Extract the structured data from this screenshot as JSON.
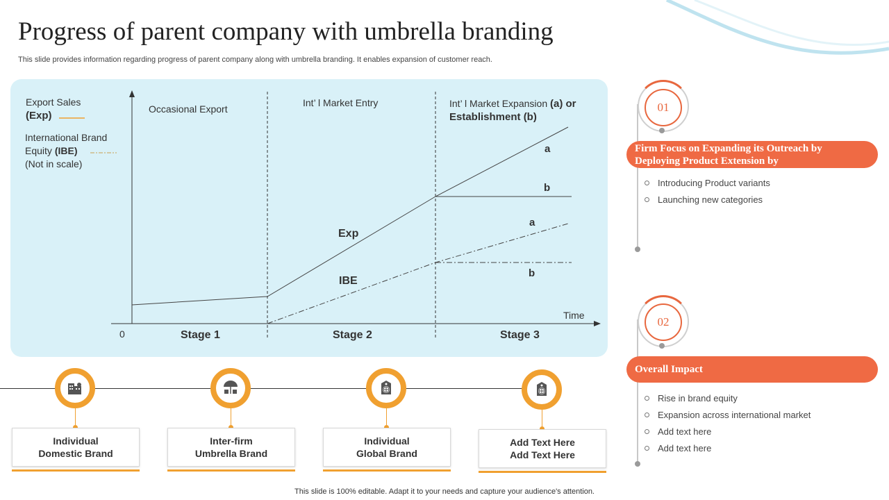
{
  "title": "Progress of parent company with umbrella branding",
  "subtitle": "This slide provides information regarding progress of parent company along with umbrella branding. It enables expansion of customer reach.",
  "colors": {
    "panel_bg": "#d9f1f8",
    "accent_orange": "#f0a030",
    "accent_red": "#ef6a44"
  },
  "diagram": {
    "legend": {
      "exp_label": "Export Sales",
      "exp_abbr": "(Exp)",
      "ibe_label_1": "International Brand",
      "ibe_label_2": "Equity",
      "ibe_abbr": "(IBE)",
      "ibe_note": "(Not in scale)"
    },
    "phases": {
      "occasional": "Occasional Export",
      "entry": "Int’ l Market Entry",
      "expansion_a": "Int’ l Market Expansion ",
      "expansion_a_bold": "(a) or",
      "expansion_b": "Establishment (b)"
    },
    "origin": "0",
    "time_label": "Time",
    "stages": [
      "Stage 1",
      "Stage 2",
      "Stage 3"
    ],
    "curve_labels": {
      "exp": "Exp",
      "ibe": "IBE",
      "exp_a": "a",
      "exp_b": "b",
      "ibe_a": "a",
      "ibe_b": "b"
    }
  },
  "timeline": [
    {
      "icon": "buildings-icon",
      "line1": "Individual",
      "line2": "Domestic Brand"
    },
    {
      "icon": "umbrella-icon",
      "line1": "Inter-firm",
      "line2": "Umbrella Brand"
    },
    {
      "icon": "global-tag-icon",
      "line1": "Individual",
      "line2": "Global Brand"
    },
    {
      "icon": "global-tag-icon",
      "line1": "Add  Text Here",
      "line2": "Add  Text Here"
    }
  ],
  "sections": [
    {
      "number": "01",
      "heading": "Firm Focus on Expanding its Outreach by Deploying Product Extension by",
      "bullets": [
        "Introducing Product variants",
        "Launching new categories"
      ]
    },
    {
      "number": "02",
      "heading": "Overall Impact",
      "bullets": [
        "Rise in brand equity",
        "Expansion across international market",
        "Add text here",
        "Add text here"
      ]
    }
  ],
  "footer": "This slide is 100% editable.  Adapt it to your needs and capture your audience's attention."
}
